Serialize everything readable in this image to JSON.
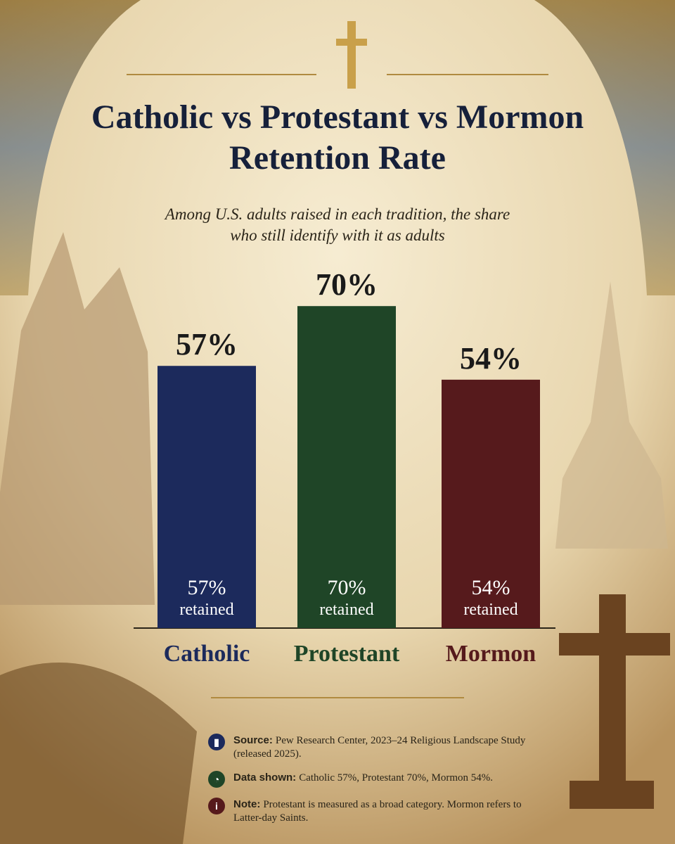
{
  "chart_data": {
    "type": "bar",
    "title": "Catholic vs Protestant vs Mormon Retention Rate",
    "subtitle": "Among U.S. adults raised in each tradition, the share who still identify with it as adults",
    "categories": [
      "Catholic",
      "Protestant",
      "Mormon"
    ],
    "values": [
      57,
      70,
      54
    ],
    "value_labels": [
      "57%",
      "70%",
      "54%"
    ],
    "value_note": "retained",
    "colors": [
      "#1c2a5c",
      "#1f4527",
      "#561a1c"
    ],
    "ylim": [
      0,
      100
    ],
    "notes": [
      {
        "label": "Source:",
        "text": "Pew Research Center, 2023–24 Religious Landscape Study (released 2025)."
      },
      {
        "label": "Data shown:",
        "text": "Catholic 57%, Protestant 70%, Mormon 54%."
      },
      {
        "label": "Note:",
        "text": "Protestant is measured as a broad category. Mormon refers to Latter-day Saints."
      }
    ]
  }
}
